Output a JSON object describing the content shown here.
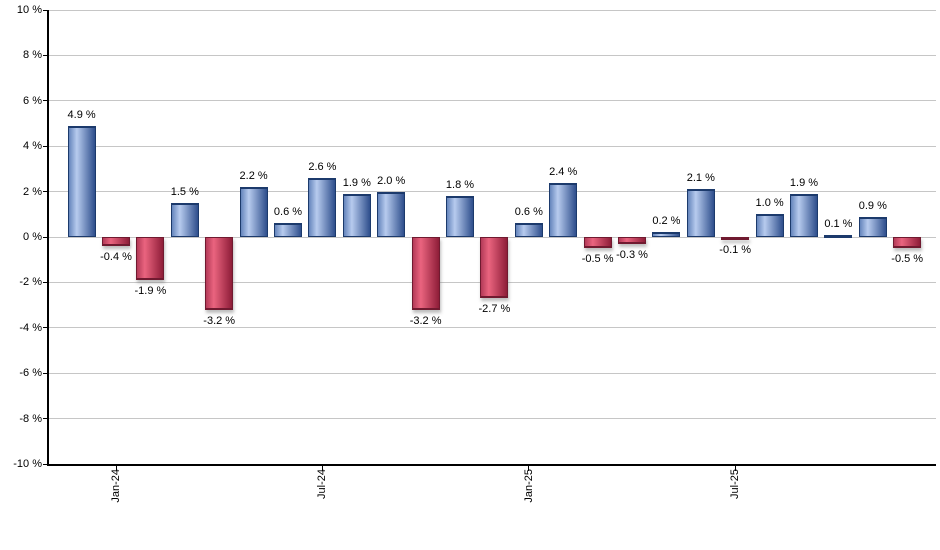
{
  "chart_data": {
    "type": "bar",
    "title": "",
    "xlabel": "",
    "ylabel": "",
    "ylim": [
      -10,
      10
    ],
    "y_tick_step": 2,
    "grid": true,
    "legend": false,
    "y_tick_labels": [
      "10 %",
      "8 %",
      "6 %",
      "4 %",
      "2 %",
      "0 %",
      "-2 %",
      "-4 %",
      "-6 %",
      "-8 %",
      "-10 %"
    ],
    "y_tick_values": [
      10,
      8,
      6,
      4,
      2,
      0,
      -2,
      -4,
      -6,
      -8,
      -10
    ],
    "x_ticks": [
      {
        "label": "Jan-24",
        "bar_index": 1
      },
      {
        "label": "Jul-24",
        "bar_index": 7
      },
      {
        "label": "Jan-25",
        "bar_index": 13
      },
      {
        "label": "Jul-25",
        "bar_index": 19
      }
    ],
    "values": [
      4.9,
      -0.4,
      -1.9,
      1.5,
      -3.2,
      2.2,
      0.6,
      2.6,
      1.9,
      2.0,
      -3.2,
      1.8,
      -2.7,
      0.6,
      2.4,
      -0.5,
      -0.3,
      0.2,
      2.1,
      -0.1,
      1.0,
      1.9,
      0.1,
      0.9,
      -0.5
    ],
    "bar_labels": [
      "4.9 %",
      "-0.4 %",
      "-1.9 %",
      "1.5 %",
      "-3.2 %",
      "2.2 %",
      "0.6 %",
      "2.6 %",
      "1.9 %",
      "2.0 %",
      "-3.2 %",
      "1.8 %",
      "-2.7 %",
      "0.6 %",
      "2.4 %",
      "-0.5 %",
      "-0.3 %",
      "0.2 %",
      "2.1 %",
      "-0.1 %",
      "1.0 %",
      "1.9 %",
      "0.1 %",
      "0.9 %",
      "-0.5 %"
    ],
    "colors": {
      "positive_gradient": [
        "#6585bc",
        "#b7cbee",
        "#2e4e8c"
      ],
      "positive_border": "#1c3a6c",
      "negative_gradient": [
        "#b43a58",
        "#ea647f",
        "#8e1d38"
      ],
      "negative_border": "#701a30",
      "gridline": "#c6c6c6",
      "axis": "#000000",
      "label_text": "#000000"
    }
  }
}
